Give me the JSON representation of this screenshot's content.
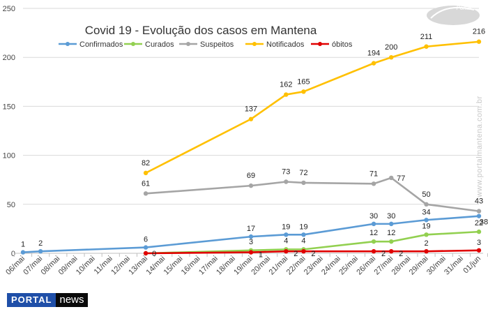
{
  "chart_data": {
    "type": "line",
    "title": "Covid 19 - Evolução dos casos em Mantena",
    "categories": [
      "06/mai",
      "07/mai",
      "08/mai",
      "09/mai",
      "10/mai",
      "11/mai",
      "12/mai",
      "13/mai",
      "14/mai",
      "15/mai",
      "16/mai",
      "17/mai",
      "18/mai",
      "19/mai",
      "20/mai",
      "21/mai",
      "22/mai",
      "23/mai",
      "24/mai",
      "25/mai",
      "26/mai",
      "27/mai",
      "28/mai",
      "29/mai",
      "30/mai",
      "31/mai",
      "01/jun"
    ],
    "ylim": [
      0,
      250
    ],
    "yticks": [
      0,
      50,
      100,
      150,
      200,
      250
    ],
    "grid": true,
    "legend_position": "top",
    "series": [
      {
        "name": "Confirmados",
        "color": "#5b9bd5",
        "points": [
          [
            "06/mai",
            1
          ],
          [
            "07/mai",
            2
          ],
          [
            "13/mai",
            6
          ],
          [
            "19/mai",
            17
          ],
          [
            "21/mai",
            19
          ],
          [
            "22/mai",
            19
          ],
          [
            "26/mai",
            30
          ],
          [
            "27/mai",
            30
          ],
          [
            "29/mai",
            34
          ],
          [
            "01/jun",
            38
          ]
        ]
      },
      {
        "name": "Curados",
        "color": "#92d050",
        "points": [
          [
            "13/mai",
            0
          ],
          [
            "19/mai",
            3
          ],
          [
            "21/mai",
            4
          ],
          [
            "22/mai",
            4
          ],
          [
            "26/mai",
            12
          ],
          [
            "27/mai",
            12
          ],
          [
            "29/mai",
            19
          ],
          [
            "01/jun",
            22
          ]
        ]
      },
      {
        "name": "Suspeitos",
        "color": "#a5a5a5",
        "points": [
          [
            "13/mai",
            61
          ],
          [
            "19/mai",
            69
          ],
          [
            "21/mai",
            73
          ],
          [
            "22/mai",
            72
          ],
          [
            "26/mai",
            71
          ],
          [
            "27/mai",
            77
          ],
          [
            "29/mai",
            50
          ],
          [
            "01/jun",
            43
          ]
        ]
      },
      {
        "name": "Notificados",
        "color": "#ffc000",
        "points": [
          [
            "13/mai",
            82
          ],
          [
            "19/mai",
            137
          ],
          [
            "21/mai",
            162
          ],
          [
            "22/mai",
            165
          ],
          [
            "26/mai",
            194
          ],
          [
            "27/mai",
            200
          ],
          [
            "29/mai",
            211
          ],
          [
            "01/jun",
            216
          ]
        ]
      },
      {
        "name": "óbitos",
        "color": "#e00000",
        "points": [
          [
            "13/mai",
            0
          ],
          [
            "19/mai",
            1
          ],
          [
            "21/mai",
            2
          ],
          [
            "22/mai",
            2
          ],
          [
            "26/mai",
            2
          ],
          [
            "27/mai",
            2
          ],
          [
            "29/mai",
            2
          ],
          [
            "01/jun",
            3
          ]
        ]
      }
    ]
  },
  "watermark": "www.portalmantena.com.br",
  "logo": {
    "text": "Portal"
  },
  "brand": {
    "portal": "PORTAL",
    "news": "news"
  }
}
